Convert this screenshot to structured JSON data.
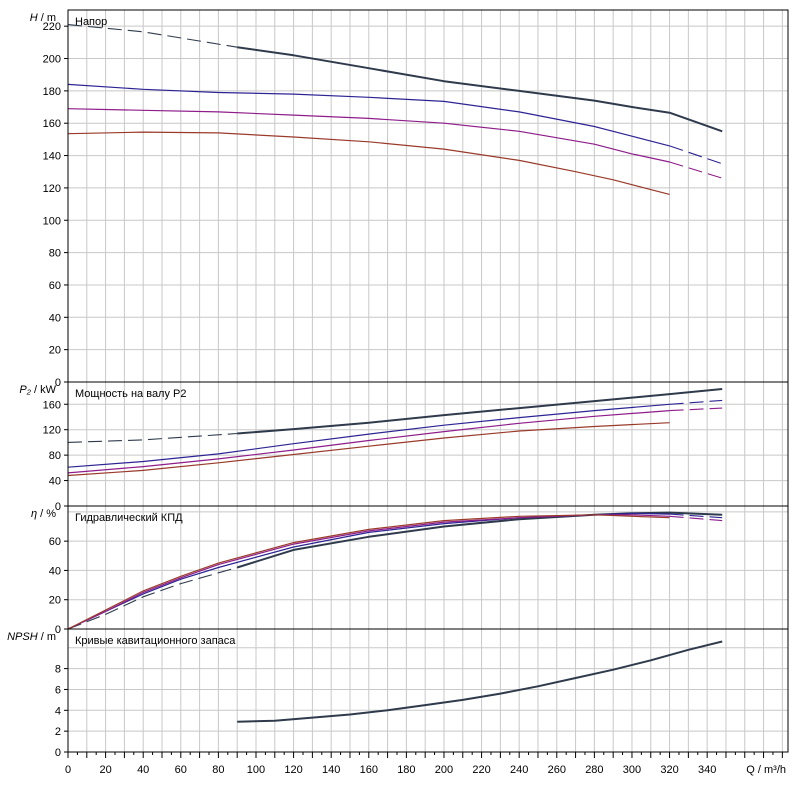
{
  "chart_data": [
    {
      "id": "head",
      "type": "line",
      "title": "Напор",
      "ylabel_var": "H",
      "ylabel_unit": "m",
      "ylim": [
        0,
        230
      ],
      "yticks": [
        0,
        20,
        40,
        60,
        80,
        100,
        120,
        140,
        160,
        180,
        200,
        220
      ],
      "grid": true,
      "series": [
        {
          "color": "#2f3b4c",
          "width": 2.0,
          "dashed_to": 90,
          "x": [
            0,
            40,
            90,
            120,
            160,
            200,
            240,
            280,
            300,
            320,
            348
          ],
          "y": [
            221,
            216.5,
            207,
            202,
            194,
            186,
            180,
            174,
            170,
            166.5,
            155
          ]
        },
        {
          "color": "#2d2494",
          "width": 1.2,
          "dashed_to": 0,
          "x": [
            0,
            40,
            80,
            120,
            160,
            200,
            240,
            280,
            300,
            320,
            348
          ],
          "y": [
            184,
            181,
            179,
            178,
            176,
            173.5,
            167,
            158,
            152,
            146,
            135
          ]
        },
        {
          "color": "#8e1c8a",
          "width": 1.2,
          "dashed_to": 0,
          "x": [
            0,
            40,
            80,
            120,
            160,
            200,
            240,
            280,
            300,
            320,
            348
          ],
          "y": [
            169,
            168,
            167,
            165,
            163,
            160,
            155,
            147,
            141,
            136,
            126
          ]
        },
        {
          "color": "#9a3a2a",
          "width": 1.2,
          "dashed_to": 0,
          "x": [
            0,
            40,
            80,
            120,
            160,
            200,
            240,
            270,
            290,
            320
          ],
          "y": [
            153.5,
            154.5,
            154,
            151.5,
            148.5,
            144,
            137,
            130,
            125,
            116
          ]
        }
      ]
    },
    {
      "id": "power",
      "type": "line",
      "title": "Мощность на валу P2",
      "ylabel_var": "P₂",
      "ylabel_unit": "kW",
      "ylim": [
        0,
        195
      ],
      "yticks": [
        0,
        40,
        80,
        120,
        160
      ],
      "grid": true,
      "series": [
        {
          "color": "#2f3b4c",
          "width": 2.0,
          "dashed_to": 90,
          "x": [
            0,
            40,
            90,
            120,
            160,
            200,
            240,
            280,
            320,
            348
          ],
          "y": [
            100,
            104,
            114,
            121,
            131,
            143,
            154,
            165,
            176,
            184
          ]
        },
        {
          "color": "#2d2494",
          "width": 1.2,
          "dashed_to": 0,
          "x": [
            0,
            40,
            80,
            120,
            160,
            200,
            240,
            280,
            320,
            348
          ],
          "y": [
            61,
            70,
            82,
            98,
            113,
            127,
            139,
            150,
            160,
            166
          ]
        },
        {
          "color": "#8e1c8a",
          "width": 1.2,
          "dashed_to": 0,
          "x": [
            0,
            40,
            80,
            120,
            160,
            200,
            240,
            280,
            320,
            348
          ],
          "y": [
            52,
            62,
            74,
            88,
            103,
            117,
            130,
            141,
            150,
            154
          ]
        },
        {
          "color": "#9a3a2a",
          "width": 1.2,
          "dashed_to": 0,
          "x": [
            0,
            40,
            80,
            120,
            160,
            200,
            240,
            280,
            320
          ],
          "y": [
            48,
            56,
            68,
            81,
            94,
            107,
            118,
            125,
            131
          ]
        }
      ]
    },
    {
      "id": "efficiency",
      "type": "line",
      "title": "Гидравлический КПД",
      "ylabel_var": "η",
      "ylabel_unit": "%",
      "ylim": [
        0,
        84
      ],
      "yticks": [
        0,
        20,
        40,
        60
      ],
      "grid": true,
      "series": [
        {
          "color": "#2f3b4c",
          "width": 2.0,
          "dashed_to": 90,
          "x": [
            0,
            20,
            40,
            60,
            90,
            120,
            160,
            200,
            240,
            280,
            300,
            320,
            348
          ],
          "y": [
            0,
            10,
            22,
            31,
            42,
            54,
            63,
            70,
            75,
            78,
            79,
            79.5,
            78
          ]
        },
        {
          "color": "#2d2494",
          "width": 1.2,
          "dashed_to": 0,
          "x": [
            0,
            20,
            40,
            60,
            80,
            120,
            160,
            200,
            240,
            280,
            300,
            320,
            348
          ],
          "y": [
            0,
            12,
            24,
            34,
            42,
            56,
            66,
            72,
            76,
            78,
            79,
            78.5,
            76
          ]
        },
        {
          "color": "#8e1c8a",
          "width": 1.2,
          "dashed_to": 0,
          "x": [
            0,
            20,
            40,
            60,
            80,
            120,
            160,
            200,
            240,
            280,
            300,
            320,
            348
          ],
          "y": [
            0,
            12,
            25,
            35,
            44,
            58,
            67,
            73,
            76,
            78,
            78,
            77,
            74
          ]
        },
        {
          "color": "#9a3a2a",
          "width": 1.2,
          "dashed_to": 0,
          "x": [
            0,
            20,
            40,
            60,
            80,
            120,
            160,
            200,
            240,
            280,
            320
          ],
          "y": [
            0,
            13,
            26,
            36,
            45,
            59,
            68,
            74,
            77,
            78,
            76
          ]
        }
      ]
    },
    {
      "id": "npsh",
      "type": "line",
      "title": "Кривые кавитационного запаса",
      "ylabel_var": "NPSH",
      "ylabel_unit": "m",
      "ylim": [
        0,
        11.8
      ],
      "yticks": [
        0,
        2,
        4,
        6,
        8
      ],
      "grid": true,
      "series": [
        {
          "color": "#2f3b4c",
          "width": 2.0,
          "dashed_to": 0,
          "x": [
            90,
            110,
            130,
            150,
            170,
            190,
            210,
            230,
            250,
            270,
            290,
            310,
            330,
            348
          ],
          "y": [
            2.9,
            3.0,
            3.3,
            3.6,
            4.0,
            4.5,
            5.0,
            5.6,
            6.3,
            7.1,
            7.9,
            8.8,
            9.8,
            10.6
          ]
        }
      ]
    }
  ],
  "x_axis": {
    "xlim": [
      0,
      383
    ],
    "ticks": [
      0,
      20,
      40,
      60,
      80,
      100,
      120,
      140,
      160,
      180,
      200,
      220,
      240,
      260,
      280,
      300,
      320,
      340
    ],
    "label": "Q / m³/h"
  }
}
